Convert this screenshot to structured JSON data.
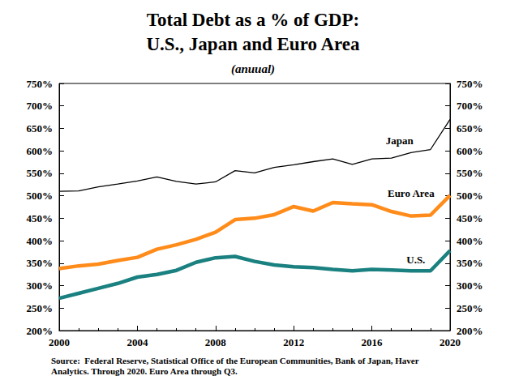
{
  "chart_data": {
    "type": "line",
    "title": "Total Debt as a % of GDP:\nU.S., Japan and Euro Area",
    "subtitle": "(anuual)",
    "note": "Source:  Federal Reserve, Statistical Office of the European Communities, Bank of Japan, Haver\nAnalytics. Through 2020. Euro Area through Q3.",
    "x": [
      2000,
      2001,
      2002,
      2003,
      2004,
      2005,
      2006,
      2007,
      2008,
      2009,
      2010,
      2011,
      2012,
      2013,
      2014,
      2015,
      2016,
      2017,
      2018,
      2019,
      2020
    ],
    "series": [
      {
        "name": "Japan",
        "color": "#000000",
        "line_style": "thin",
        "values": [
          510,
          511,
          520,
          526,
          533,
          542,
          532,
          526,
          531,
          556,
          551,
          563,
          569,
          576,
          582,
          570,
          582,
          584,
          596,
          603,
          670
        ]
      },
      {
        "name": "Euro Area",
        "color": "#ff8c1a",
        "line_style": "thick",
        "values": [
          338,
          344,
          348,
          356,
          363,
          381,
          391,
          403,
          419,
          447,
          450,
          458,
          476,
          466,
          485,
          482,
          480,
          465,
          455,
          457,
          501
        ]
      },
      {
        "name": "U.S.",
        "color": "#1a8080",
        "line_style": "thick",
        "values": [
          272,
          283,
          294,
          305,
          319,
          325,
          334,
          352,
          362,
          365,
          354,
          346,
          342,
          340,
          336,
          333,
          336,
          335,
          333,
          333,
          378
        ]
      }
    ],
    "xlim": [
      2000,
      2020
    ],
    "xticks": [
      2000,
      2004,
      2008,
      2012,
      2016,
      2020
    ],
    "ylim": [
      200,
      750
    ],
    "yticks": [
      {
        "value": 200,
        "label": "200%"
      },
      {
        "value": 250,
        "label": "250%"
      },
      {
        "value": 300,
        "label": "300%"
      },
      {
        "value": 350,
        "label": "350%"
      },
      {
        "value": 400,
        "label": "400%"
      },
      {
        "value": 450,
        "label": "450%"
      },
      {
        "value": 500,
        "label": "500%"
      },
      {
        "value": 550,
        "label": "550%"
      },
      {
        "value": 600,
        "label": "600%"
      },
      {
        "value": 650,
        "label": "650%"
      },
      {
        "value": 700,
        "label": "700%"
      },
      {
        "value": 750,
        "label": "750%"
      }
    ],
    "y2lim": [
      200,
      750
    ],
    "y2ticks": [
      {
        "value": 200,
        "label": "200%"
      },
      {
        "value": 250,
        "label": "250%"
      },
      {
        "value": 300,
        "label": "300%"
      },
      {
        "value": 350,
        "label": "350%"
      },
      {
        "value": 400,
        "label": "400%"
      },
      {
        "value": 450,
        "label": "450%"
      },
      {
        "value": 500,
        "label": "500%"
      },
      {
        "value": 550,
        "label": "550%"
      },
      {
        "value": 600,
        "label": "600%"
      },
      {
        "value": 650,
        "label": "650%"
      },
      {
        "value": 700,
        "label": "700%"
      },
      {
        "value": 750,
        "label": "750%"
      }
    ],
    "grid": false,
    "legend": false
  }
}
